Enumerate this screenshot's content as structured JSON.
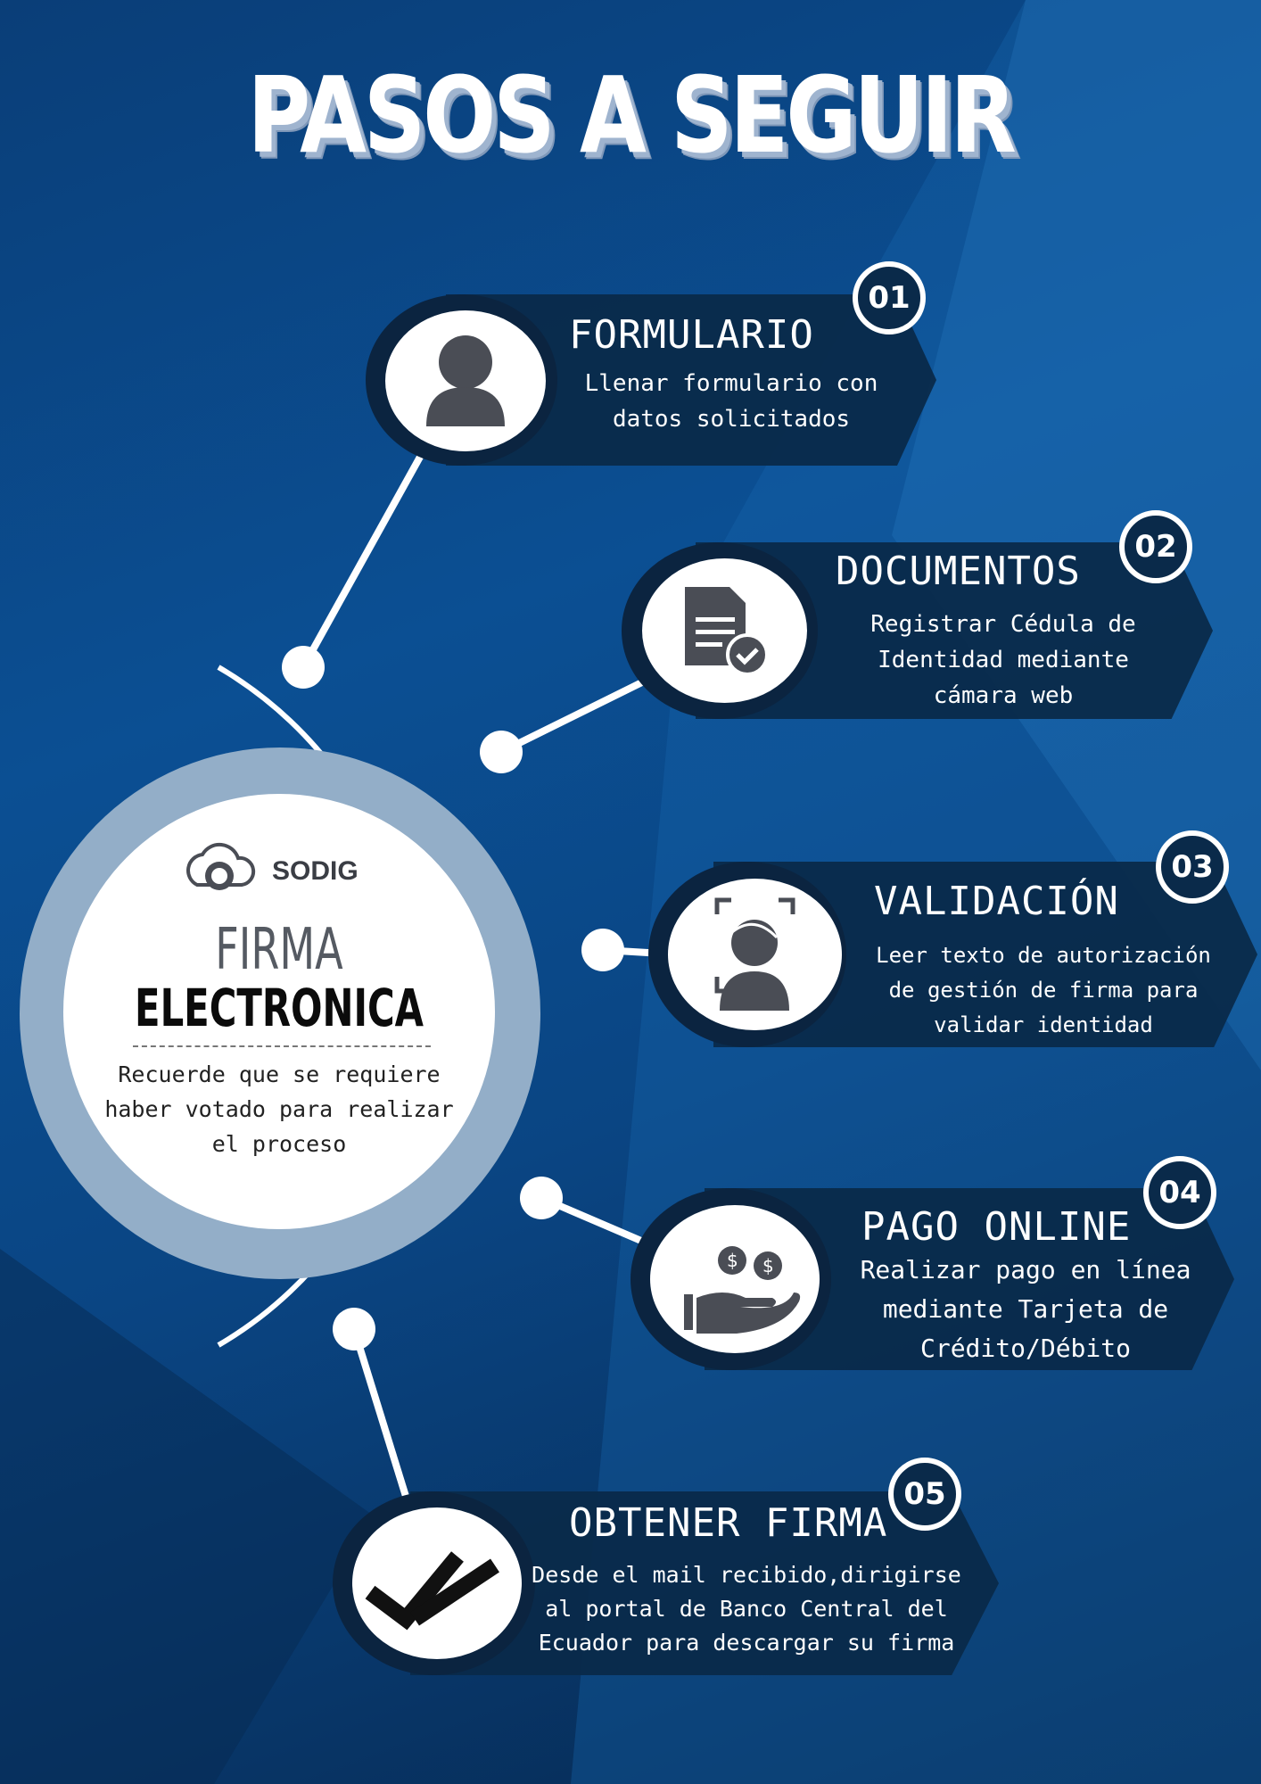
{
  "title": "PASOS A SEGUIR",
  "hub": {
    "logo_text": "SODIG",
    "title_line1": "FIRMA",
    "title_line2": "ELECTRONICA",
    "note": "Recuerde que se requiere\nhaber votado para realizar\nel proceso"
  },
  "steps": [
    {
      "number": "01",
      "title": "FORMULARIO",
      "description": "Llenar formulario con\ndatos solicitados",
      "icon": "person-icon"
    },
    {
      "number": "02",
      "title": "DOCUMENTOS",
      "description": "Registrar Cédula de\nIdentidad mediante\ncámara web",
      "icon": "document-check-icon"
    },
    {
      "number": "03",
      "title": "VALIDACIÓN",
      "description": "Leer texto  de autorización\nde gestión de firma para\nvalidar identidad",
      "icon": "face-scan-icon"
    },
    {
      "number": "04",
      "title": "PAGO ONLINE",
      "description": "Realizar pago en línea\nmediante Tarjeta de\nCrédito/Débito",
      "icon": "hand-money-icon"
    },
    {
      "number": "05",
      "title": "OBTENER FIRMA",
      "description": "Desde el mail recibido,dirigirse\nal portal de Banco Central del\nEcuador para descargar su firma",
      "icon": "double-check-icon"
    }
  ],
  "colors": {
    "background": "#0b4f93",
    "banner": "#0a2a4a",
    "hub_ring": "#93aec8",
    "icon_gray": "#4a4d55"
  }
}
